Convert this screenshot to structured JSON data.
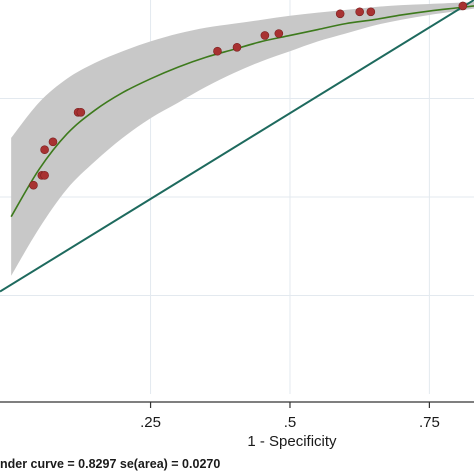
{
  "chart_data": {
    "type": "line",
    "xlabel": "1 - Specificity",
    "x_ticks": [
      {
        "value": 0.25,
        "label": ".25"
      },
      {
        "value": 0.5,
        "label": ".5"
      },
      {
        "value": 0.75,
        "label": ".75"
      }
    ],
    "xlim": [
      -0.02,
      0.83
    ],
    "ylim": [
      0.0,
      1.0
    ],
    "grid": true,
    "footnote": "nder curve = 0.8297  se(area) = 0.0270",
    "colors": {
      "curve": "#3d7a1c",
      "diagonal": "#1e6a5e",
      "points": "#a83232",
      "band": "#c8c8c8",
      "grid": "#e3e9ef",
      "axis": "#333333"
    },
    "series": [
      {
        "type": "band",
        "x": [
          0.0,
          0.05,
          0.1,
          0.15,
          0.2,
          0.25,
          0.3,
          0.35,
          0.4,
          0.45,
          0.5,
          0.55,
          0.6,
          0.65,
          0.7,
          0.75,
          0.8,
          0.83
        ],
        "upper": [
          0.65,
          0.74,
          0.8,
          0.84,
          0.87,
          0.895,
          0.915,
          0.93,
          0.94,
          0.95,
          0.96,
          0.968,
          0.975,
          0.982,
          0.987,
          0.99,
          0.993,
          0.995
        ],
        "lower": [
          0.3,
          0.42,
          0.52,
          0.59,
          0.65,
          0.7,
          0.74,
          0.78,
          0.815,
          0.845,
          0.87,
          0.895,
          0.915,
          0.935,
          0.95,
          0.962,
          0.972,
          0.978
        ]
      },
      {
        "type": "line",
        "x": [
          0.0,
          0.05,
          0.1,
          0.15,
          0.2,
          0.25,
          0.3,
          0.35,
          0.4,
          0.45,
          0.5,
          0.55,
          0.6,
          0.65,
          0.7,
          0.75,
          0.8,
          0.83
        ],
        "y": [
          0.45,
          0.57,
          0.66,
          0.72,
          0.765,
          0.8,
          0.83,
          0.855,
          0.875,
          0.895,
          0.91,
          0.925,
          0.94,
          0.95,
          0.962,
          0.972,
          0.98,
          0.985
        ]
      },
      {
        "type": "line",
        "x": [
          -0.02,
          0.83
        ],
        "y": [
          0.26,
          1.0
        ]
      },
      {
        "type": "scatter",
        "points": [
          {
            "x": 0.04,
            "y": 0.53
          },
          {
            "x": 0.055,
            "y": 0.555
          },
          {
            "x": 0.06,
            "y": 0.555
          },
          {
            "x": 0.06,
            "y": 0.62
          },
          {
            "x": 0.075,
            "y": 0.64
          },
          {
            "x": 0.12,
            "y": 0.715
          },
          {
            "x": 0.125,
            "y": 0.715
          },
          {
            "x": 0.37,
            "y": 0.87
          },
          {
            "x": 0.405,
            "y": 0.88
          },
          {
            "x": 0.455,
            "y": 0.91
          },
          {
            "x": 0.48,
            "y": 0.915
          },
          {
            "x": 0.59,
            "y": 0.965
          },
          {
            "x": 0.625,
            "y": 0.97
          },
          {
            "x": 0.645,
            "y": 0.97
          },
          {
            "x": 0.81,
            "y": 0.985
          }
        ]
      }
    ]
  }
}
